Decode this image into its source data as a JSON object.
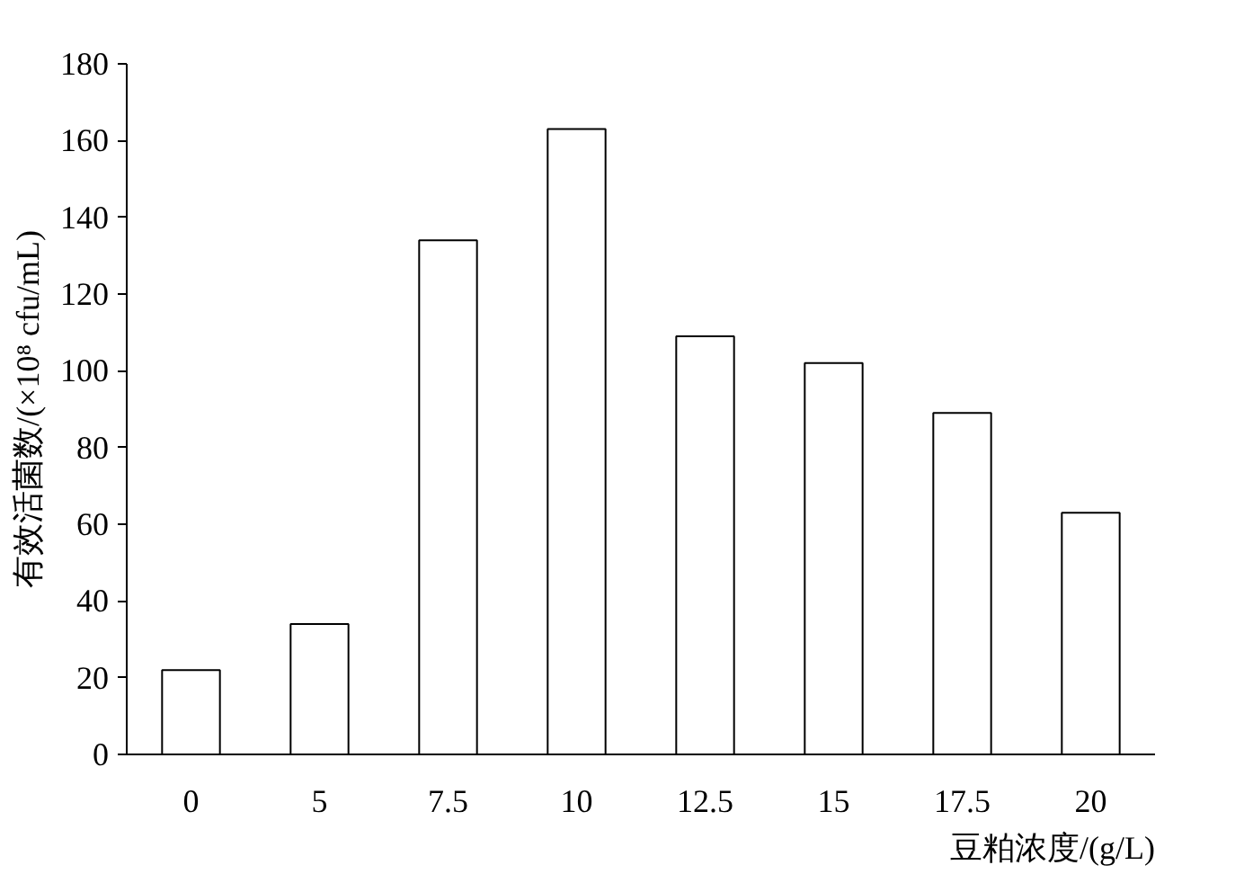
{
  "chart_data": {
    "type": "bar",
    "xlabel": "豆粕浓度/(g/L)",
    "ylabel": "有效活菌数/(×10⁸ cfu/mL)",
    "categories": [
      "0",
      "5",
      "7.5",
      "10",
      "12.5",
      "15",
      "17.5",
      "20"
    ],
    "values": [
      22,
      34,
      134,
      163,
      109,
      102,
      89,
      63
    ],
    "color": "#ffffff",
    "ylim": [
      0,
      180
    ],
    "yticks": [
      0,
      20,
      40,
      60,
      80,
      100,
      120,
      140,
      160,
      180
    ],
    "grid": false
  }
}
